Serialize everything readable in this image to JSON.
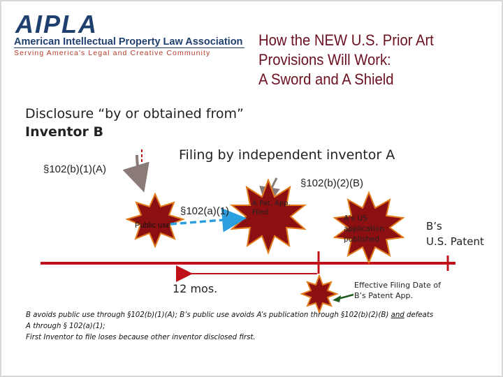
{
  "logo": {
    "wordmark": "AIPLA",
    "name": "American Intellectual Property Law Association",
    "tagline": "Serving America's Legal and Creative Community"
  },
  "title": {
    "line1": "How the NEW U.S. Prior Art",
    "line2": "Provisions Will Work:",
    "line3": "A Sword and A Shield"
  },
  "labels": {
    "disclosure_line1": "Disclosure “by or obtained from”",
    "disclosure_line2": "Inventor B",
    "filing": "Filing by independent inventor A",
    "sec_102b1a": "§102(b)(1)(A)",
    "sec_102b2b": "§102(b)(2)(B)",
    "sec_102a1": "§102(a)(1)",
    "public_use": "Public use",
    "a_pat_app_line1": "A Pat. App.",
    "a_pat_app_line2": "Filed",
    "a_us_line1": "A’s US",
    "a_us_line2": "application",
    "a_us_line3": "published",
    "b_patent_line1": "B’s",
    "b_patent_line2": "U.S. Patent",
    "twelve_mos": "12 mos.",
    "effective_line1": "Effective Filing Date of",
    "effective_line2": "B’s Patent App."
  },
  "caption": {
    "line1_a": "B avoids public use through §102(b)(1)(A); B’s public use avoids A’s publication through §102(b)(2)(B)",
    "line1_and": "and",
    "line1_b": "defeats",
    "line2": "A through § 102(a)(1);",
    "line3": "First Inventor to file loses because other inventor disclosed first."
  },
  "colors": {
    "logo_blue": "#1f3f6e",
    "logo_red": "#b73b2c",
    "title": "#6b1020",
    "timeline": "#c0101a",
    "burst_fill": "#8c0f12",
    "burst_stroke": "#e07a1a",
    "dashed_arrow": "#2c9fe0",
    "gray_arrow": "#8a7a78",
    "green_arrow": "#1f5b1f"
  }
}
